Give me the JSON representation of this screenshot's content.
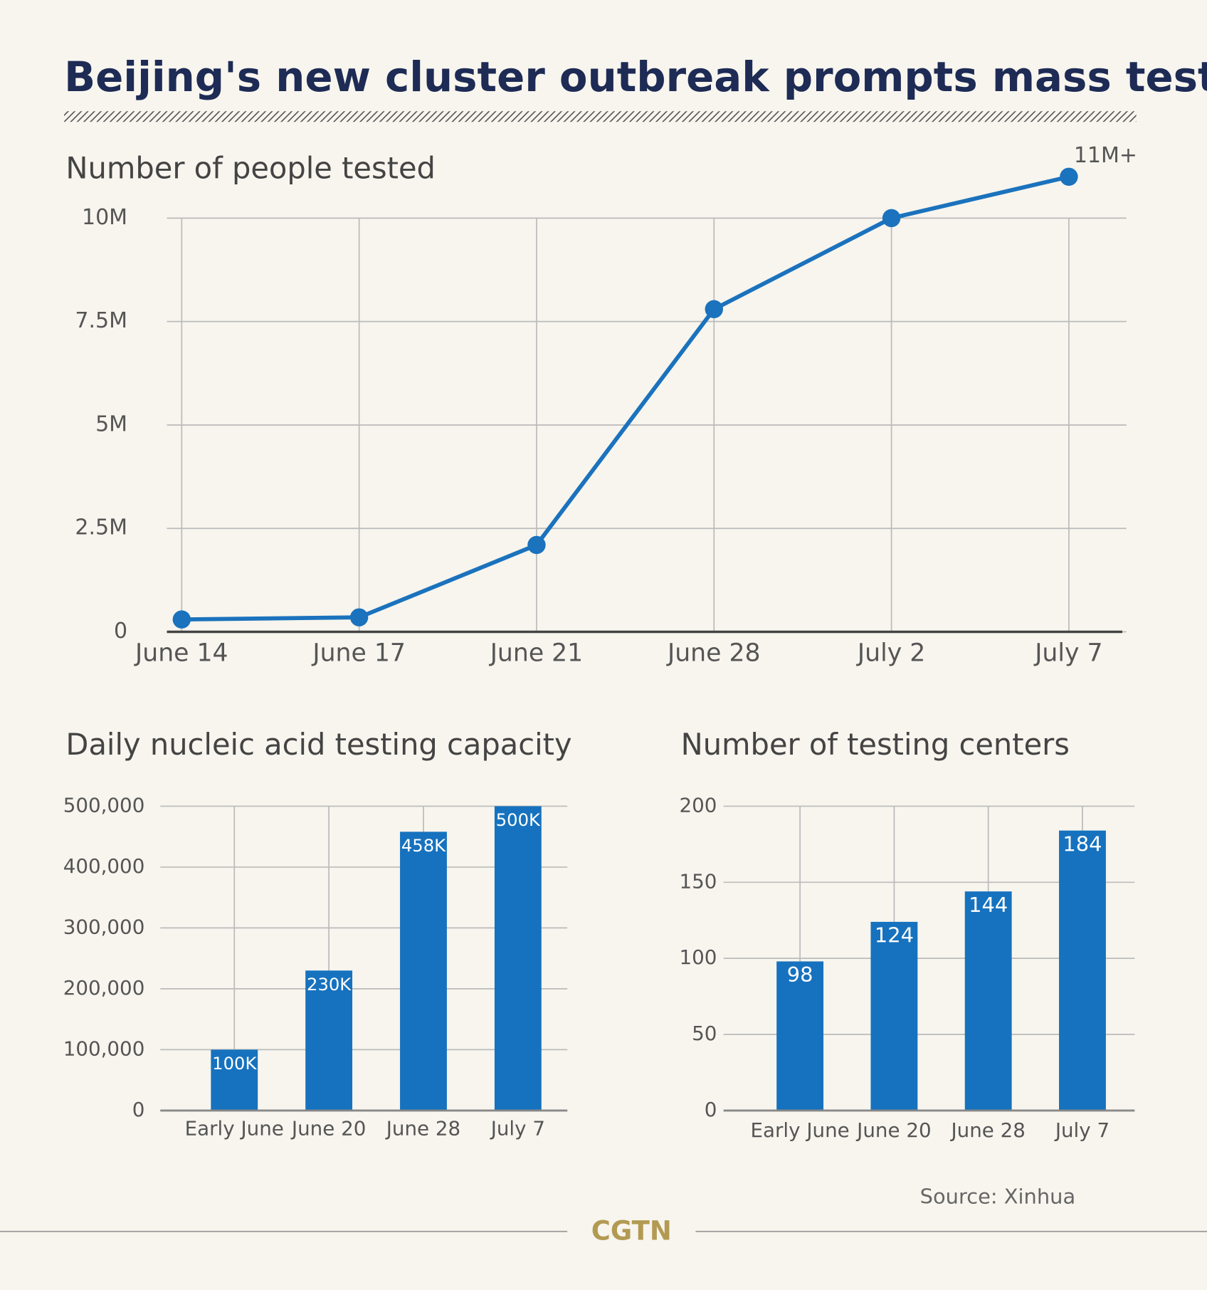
{
  "title": "Beijing's new cluster outbreak prompts mass testing",
  "source": "Source: Xinhua",
  "logo": "CGTN",
  "chart_data": [
    {
      "type": "line",
      "title": "Number of people tested",
      "categories": [
        "June 14",
        "June 17",
        "June 21",
        "June 28",
        "July 2",
        "July 7"
      ],
      "values": [
        300000,
        350000,
        2100000,
        7800000,
        10000000,
        11000000
      ],
      "value_labels": [
        null,
        null,
        null,
        null,
        null,
        "11M+"
      ],
      "color": "#1b72bd",
      "ylim": [
        0,
        10000000
      ],
      "yticks": [
        0,
        {
          "value": 2500000,
          "label": "2.5M"
        },
        {
          "value": 5000000,
          "label": "5M"
        },
        {
          "value": 7500000,
          "label": "7.5M"
        },
        {
          "value": 10000000,
          "label": "10M"
        }
      ],
      "grid": true
    },
    {
      "type": "bar",
      "title": "Daily nucleic acid testing capacity",
      "categories": [
        "Early June",
        "June 20",
        "June 28",
        "July 7"
      ],
      "values": [
        100000,
        230000,
        458000,
        500000
      ],
      "value_labels": [
        "100K",
        "230K",
        "458K",
        "500K"
      ],
      "color": "#1672be",
      "ylim": [
        0,
        500000
      ],
      "yticks": [
        0,
        {
          "value": 100000,
          "label": "100,000"
        },
        {
          "value": 200000,
          "label": "200,000"
        },
        {
          "value": 300000,
          "label": "300,000"
        },
        {
          "value": 400000,
          "label": "400,000"
        },
        {
          "value": 500000,
          "label": "500,000"
        }
      ],
      "grid": true
    },
    {
      "type": "bar",
      "title": "Number of testing centers",
      "categories": [
        "Early June",
        "June 20",
        "June 28",
        "July 7"
      ],
      "values": [
        98,
        124,
        144,
        184
      ],
      "color": "#1672be",
      "ylim": [
        0,
        200
      ],
      "yticks": [
        0,
        50,
        100,
        150,
        200
      ],
      "grid": true
    }
  ]
}
